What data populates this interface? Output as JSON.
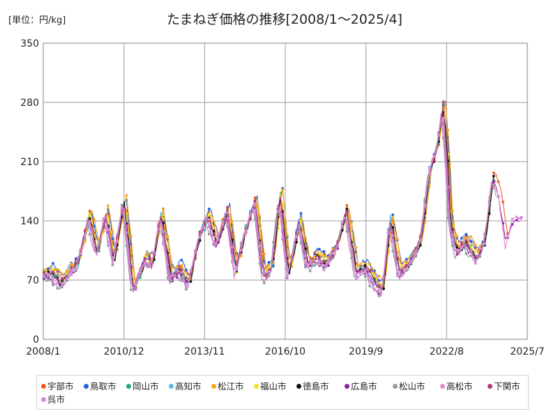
{
  "chart_data": {
    "type": "line",
    "title": "たまねぎ価格の推移[2008/1～2025/4]",
    "unit_label": "[単位：円/kg]",
    "xlabel": "",
    "ylabel": "",
    "ylim": [
      0,
      350
    ],
    "y_ticks": [
      "0",
      "70",
      "140",
      "210",
      "280",
      "350"
    ],
    "x_ticks": [
      "2008/1",
      "2010/12",
      "2013/11",
      "2016/10",
      "2019/9",
      "2022/8",
      "2025/7"
    ],
    "grid": true,
    "legend_position": "bottom",
    "x_start_year": 2008,
    "x_end_year": 2025.5,
    "anchor_times": [
      2008.0,
      2008.35,
      2008.7,
      2009.0,
      2009.3,
      2009.7,
      2010.0,
      2010.3,
      2010.6,
      2010.95,
      2011.3,
      2011.7,
      2012.0,
      2012.3,
      2012.65,
      2012.95,
      2013.3,
      2013.7,
      2014.0,
      2014.3,
      2014.7,
      2015.0,
      2015.3,
      2015.7,
      2016.0,
      2016.3,
      2016.6,
      2016.9,
      2017.3,
      2017.6,
      2017.9,
      2018.3,
      2018.7,
      2019.0,
      2019.35,
      2019.7,
      2020.0,
      2020.3,
      2020.6,
      2020.9,
      2021.3,
      2021.7,
      2022.0,
      2022.3,
      2022.5,
      2022.65,
      2022.75,
      2023.0,
      2023.3,
      2023.7,
      2024.0,
      2024.3,
      2024.55,
      2024.8,
      2025.0,
      2025.2
    ],
    "anchor_values": [
      78,
      80,
      68,
      82,
      92,
      148,
      105,
      150,
      95,
      165,
      60,
      95,
      92,
      150,
      75,
      85,
      68,
      125,
      148,
      115,
      155,
      82,
      125,
      165,
      78,
      85,
      175,
      78,
      142,
      88,
      100,
      92,
      115,
      155,
      82,
      88,
      70,
      58,
      145,
      82,
      92,
      120,
      200,
      230,
      280,
      210,
      140,
      105,
      118,
      100,
      115,
      195,
      175,
      115,
      145,
      150
    ],
    "series": [
      {
        "name": "宇部市",
        "color": "#f25a1e",
        "offset": 3,
        "lag": 0.0,
        "end": 2024.8
      },
      {
        "name": "鳥取市",
        "color": "#1d5fe0",
        "offset": 6,
        "lag": -0.03,
        "end": 2024.0
      },
      {
        "name": "岡山市",
        "color": "#23a77d",
        "offset": -4,
        "lag": 0.03,
        "end": 2024.4
      },
      {
        "name": "高知市",
        "color": "#53b8ea",
        "offset": -1,
        "lag": 0.05,
        "end": 2024.0
      },
      {
        "name": "松江市",
        "color": "#f5a818",
        "offset": 5,
        "lag": -0.05,
        "end": 2024.0
      },
      {
        "name": "福山市",
        "color": "#f3e21c",
        "offset": 0,
        "lag": 0.01,
        "end": 2024.0
      },
      {
        "name": "徳島市",
        "color": "#111111",
        "offset": -3,
        "lag": 0.02,
        "end": 2024.35
      },
      {
        "name": "広島市",
        "color": "#8e1fa6",
        "offset": -6,
        "lag": 0.07,
        "end": 2025.3
      },
      {
        "name": "松山市",
        "color": "#8f9aa5",
        "offset": -9,
        "lag": 0.1,
        "end": 2024.4
      },
      {
        "name": "高松市",
        "color": "#e08bd1",
        "offset": -7,
        "lag": 0.09,
        "end": 2025.3
      },
      {
        "name": "下関市",
        "color": "#b03a7a",
        "offset": -2,
        "lag": 0.04,
        "end": 2024.0
      },
      {
        "name": "呉市",
        "color": "#d98ad6",
        "offset": -4,
        "lag": 0.06,
        "end": 2024.0
      }
    ]
  }
}
